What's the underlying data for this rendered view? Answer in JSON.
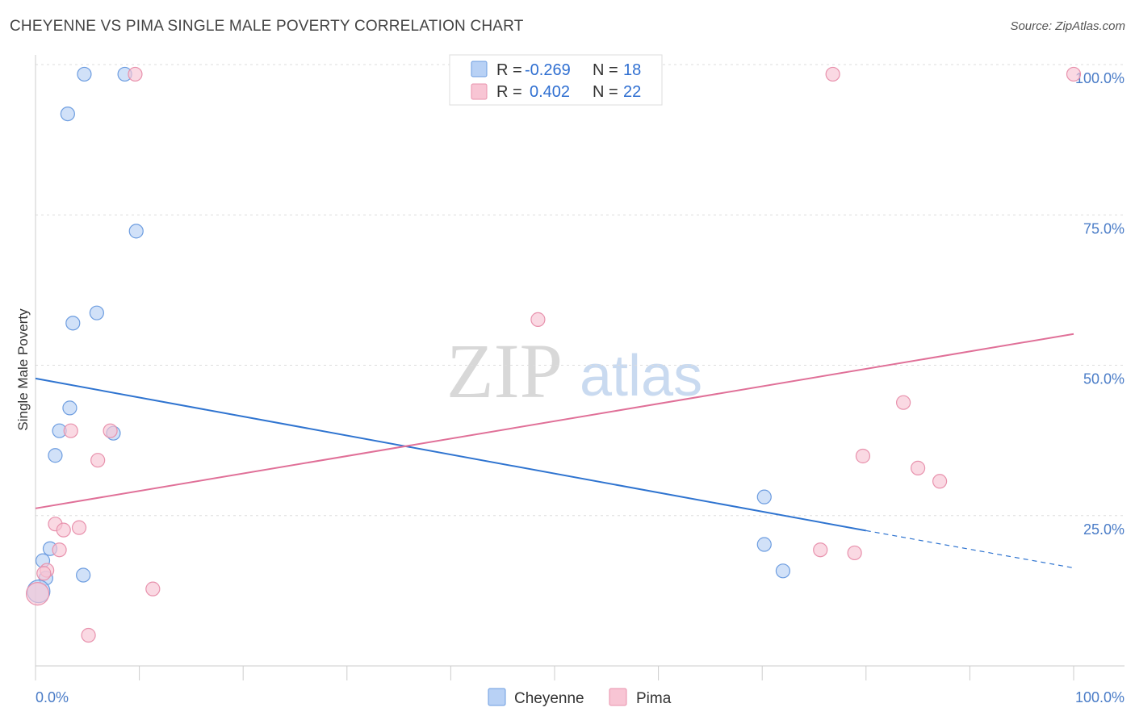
{
  "title": "CHEYENNE VS PIMA SINGLE MALE POVERTY CORRELATION CHART",
  "source": "Source: ZipAtlas.com",
  "watermark": {
    "zip": "ZIP",
    "atlas": "atlas"
  },
  "legend": {
    "cheyenne": {
      "r_label": "R =",
      "r_value": "-0.269",
      "n_label": "N =",
      "n_value": "18"
    },
    "pima": {
      "r_label": "R =",
      "r_value": "0.402",
      "n_label": "N =",
      "n_value": "22"
    }
  },
  "colors": {
    "cheyenne_fill": "#b8d1f5",
    "cheyenne_stroke": "#6d9de0",
    "cheyenne_line": "#2f74d0",
    "pima_fill": "#f8c5d4",
    "pima_stroke": "#e892ad",
    "pima_line": "#e07098",
    "grid": "#dddddd",
    "tick_label": "#4a7cc7"
  },
  "chart_data": {
    "type": "scatter",
    "title": "CHEYENNE VS PIMA SINGLE MALE POVERTY CORRELATION CHART",
    "xlabel": "",
    "ylabel": "Single Male Poverty",
    "xlim": [
      0,
      100
    ],
    "ylim": [
      0,
      100
    ],
    "x_tick_labels": {
      "left": "0.0%",
      "right": "100.0%"
    },
    "y_ticks": [
      {
        "value": 25,
        "label": "25.0%"
      },
      {
        "value": 50,
        "label": "50.0%"
      },
      {
        "value": 75,
        "label": "75.0%"
      },
      {
        "value": 100,
        "label": "100.0%"
      }
    ],
    "series": [
      {
        "name": "Cheyenne",
        "points": [
          [
            4.7,
            98.4
          ],
          [
            8.6,
            98.4
          ],
          [
            3.1,
            91.8
          ],
          [
            9.7,
            72.3
          ],
          [
            5.9,
            58.7
          ],
          [
            3.6,
            57.0
          ],
          [
            3.3,
            42.9
          ],
          [
            2.3,
            39.1
          ],
          [
            7.5,
            38.7
          ],
          [
            1.9,
            35.0
          ],
          [
            1.4,
            19.5
          ],
          [
            0.7,
            17.5
          ],
          [
            1.0,
            14.6
          ],
          [
            4.6,
            15.1
          ],
          [
            0.3,
            12.4
          ],
          [
            70.2,
            20.2
          ],
          [
            70.2,
            28.1
          ],
          [
            72.0,
            15.8
          ]
        ],
        "trend": {
          "x0": 0,
          "y0": 47.8,
          "x1": 80,
          "y1": 22.5,
          "dash_to_x": 100,
          "dash_to_y": 16.3
        }
      },
      {
        "name": "Pima",
        "points": [
          [
            9.6,
            98.4
          ],
          [
            76.8,
            98.4
          ],
          [
            100,
            98.4
          ],
          [
            48.4,
            57.6
          ],
          [
            83.6,
            43.8
          ],
          [
            3.4,
            39.1
          ],
          [
            7.2,
            39.1
          ],
          [
            6.0,
            34.2
          ],
          [
            79.7,
            34.9
          ],
          [
            85.0,
            32.9
          ],
          [
            87.1,
            30.7
          ],
          [
            1.9,
            23.6
          ],
          [
            4.2,
            23.0
          ],
          [
            2.7,
            22.6
          ],
          [
            2.3,
            19.3
          ],
          [
            75.6,
            19.3
          ],
          [
            78.9,
            18.8
          ],
          [
            1.1,
            15.9
          ],
          [
            0.8,
            15.4
          ],
          [
            11.3,
            12.8
          ],
          [
            5.1,
            5.1
          ],
          [
            0.2,
            12.0
          ]
        ],
        "trend": {
          "x0": 0,
          "y0": 26.2,
          "x1": 100,
          "y1": 55.2
        }
      }
    ]
  },
  "bottom_legend": {
    "cheyenne": "Cheyenne",
    "pima": "Pima"
  },
  "y_axis_title": "Single Male Poverty"
}
